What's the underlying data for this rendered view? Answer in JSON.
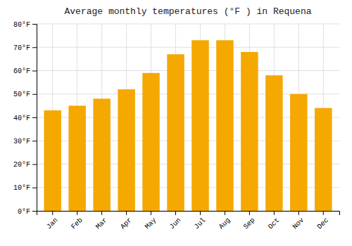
{
  "chart_data": {
    "type": "bar",
    "title": "Average monthly temperatures (°F ) in Requena",
    "categories": [
      "Jan",
      "Feb",
      "Mar",
      "Apr",
      "May",
      "Jun",
      "Jul",
      "Aug",
      "Sep",
      "Oct",
      "Nov",
      "Dec"
    ],
    "values": [
      43,
      45,
      48,
      52,
      59,
      67,
      73,
      73,
      68,
      58,
      50,
      44
    ],
    "color": "#F5A800",
    "ylim": [
      0,
      80
    ],
    "yticks": [
      {
        "value": 0,
        "label": "0°F"
      },
      {
        "value": 10,
        "label": "10°F"
      },
      {
        "value": 20,
        "label": "20°F"
      },
      {
        "value": 30,
        "label": "30°F"
      },
      {
        "value": 40,
        "label": "40°F"
      },
      {
        "value": 50,
        "label": "50°F"
      },
      {
        "value": 60,
        "label": "60°F"
      },
      {
        "value": 70,
        "label": "70°F"
      },
      {
        "value": 80,
        "label": "80°F"
      }
    ],
    "grid": true
  }
}
